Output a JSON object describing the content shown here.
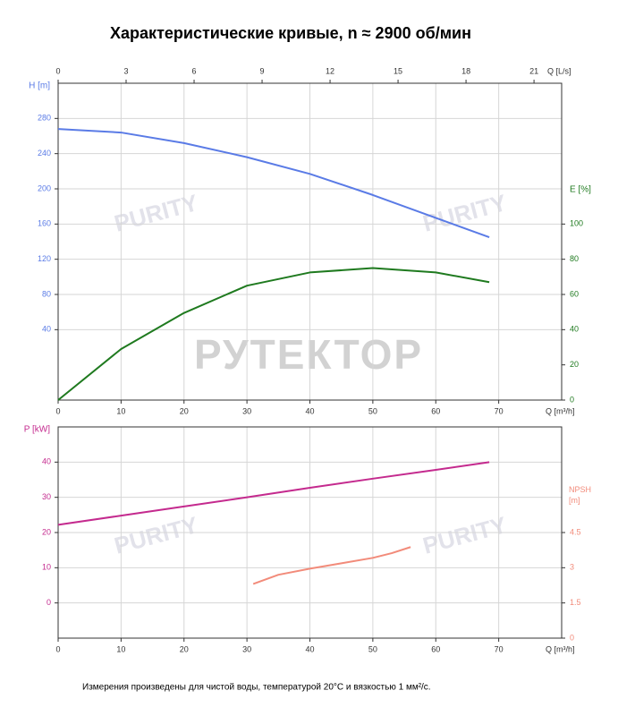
{
  "title": "Характеристические кривые, n ≈ 2900 об/мин",
  "watermark": "РУТЕКТОР",
  "logo": "PURITY",
  "note": "Измерения произведены для чистой воды, температурой 20°C и вязкостью 1 мм²/с.",
  "chart_data": [
    {
      "type": "line",
      "x_label": "Q [m³/h]",
      "x2_label": "Q [L/s]",
      "y_label": "H [m]",
      "y2_label": "E [%]",
      "xlim": [
        0,
        80
      ],
      "xticks": [
        0,
        10,
        20,
        30,
        40,
        50,
        60,
        70
      ],
      "x2lim": [
        0,
        22.22
      ],
      "x2ticks": [
        0,
        3,
        6,
        9,
        12,
        15,
        18,
        21
      ],
      "ylim": [
        -40,
        320
      ],
      "yticks": [
        40,
        80,
        120,
        160,
        200,
        240,
        280
      ],
      "y2lim": [
        0,
        180
      ],
      "y2ticks": [
        0,
        20,
        40,
        60,
        80,
        100
      ],
      "grid": true,
      "series": [
        {
          "color": "#5a7be6",
          "x": [
            0,
            10,
            20,
            30,
            40,
            50,
            60,
            68.5
          ],
          "values": [
            268,
            264,
            252,
            236,
            217,
            193,
            167,
            145
          ]
        },
        {
          "color": "#1f7a1f",
          "axis": "y2",
          "x": [
            0,
            10,
            20,
            30,
            40,
            50,
            60,
            68.5
          ],
          "values": [
            0,
            29,
            49.5,
            65,
            72.5,
            75,
            72.5,
            67
          ]
        }
      ]
    },
    {
      "type": "line",
      "x_label": "Q [m³/h]",
      "y_label": "P [kW]",
      "y2_label": "NPSH [m]",
      "xlim": [
        0,
        80
      ],
      "xticks": [
        0,
        10,
        20,
        30,
        40,
        50,
        60,
        70
      ],
      "ylim": [
        -10,
        50
      ],
      "yticks": [
        0,
        10,
        20,
        30,
        40
      ],
      "y2lim": [
        0,
        9
      ],
      "y2ticks": [
        0,
        1.5,
        3,
        4.5
      ],
      "grid": true,
      "series": [
        {
          "color": "#c42a8e",
          "x": [
            0,
            10,
            20,
            30,
            40,
            50,
            60,
            68.5
          ],
          "values": [
            22.2,
            24.8,
            27.4,
            30.0,
            32.7,
            35.3,
            37.8,
            40
          ]
        },
        {
          "color": "#f28b7a",
          "axis": "y2",
          "x": [
            31,
            35,
            40,
            45,
            50,
            53,
            56
          ],
          "values": [
            2.31,
            2.7,
            2.96,
            3.19,
            3.42,
            3.62,
            3.88
          ]
        }
      ]
    }
  ]
}
